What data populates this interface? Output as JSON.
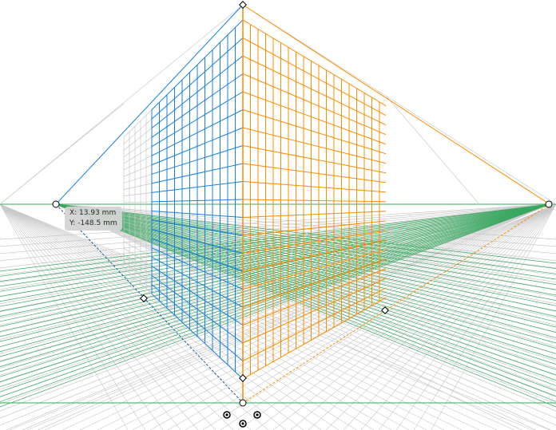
{
  "tooltip": {
    "x": "X: 13.93 mm",
    "y": "Y: -148.5 mm"
  },
  "colors": {
    "left_plane": "#1a7fe0",
    "right_plane": "#ff8c00",
    "ground": "#3aa860",
    "extension": "#c8c8c8",
    "tooltip_bg": "#d4d4d4"
  },
  "tool": "perspective-grid-two-point"
}
